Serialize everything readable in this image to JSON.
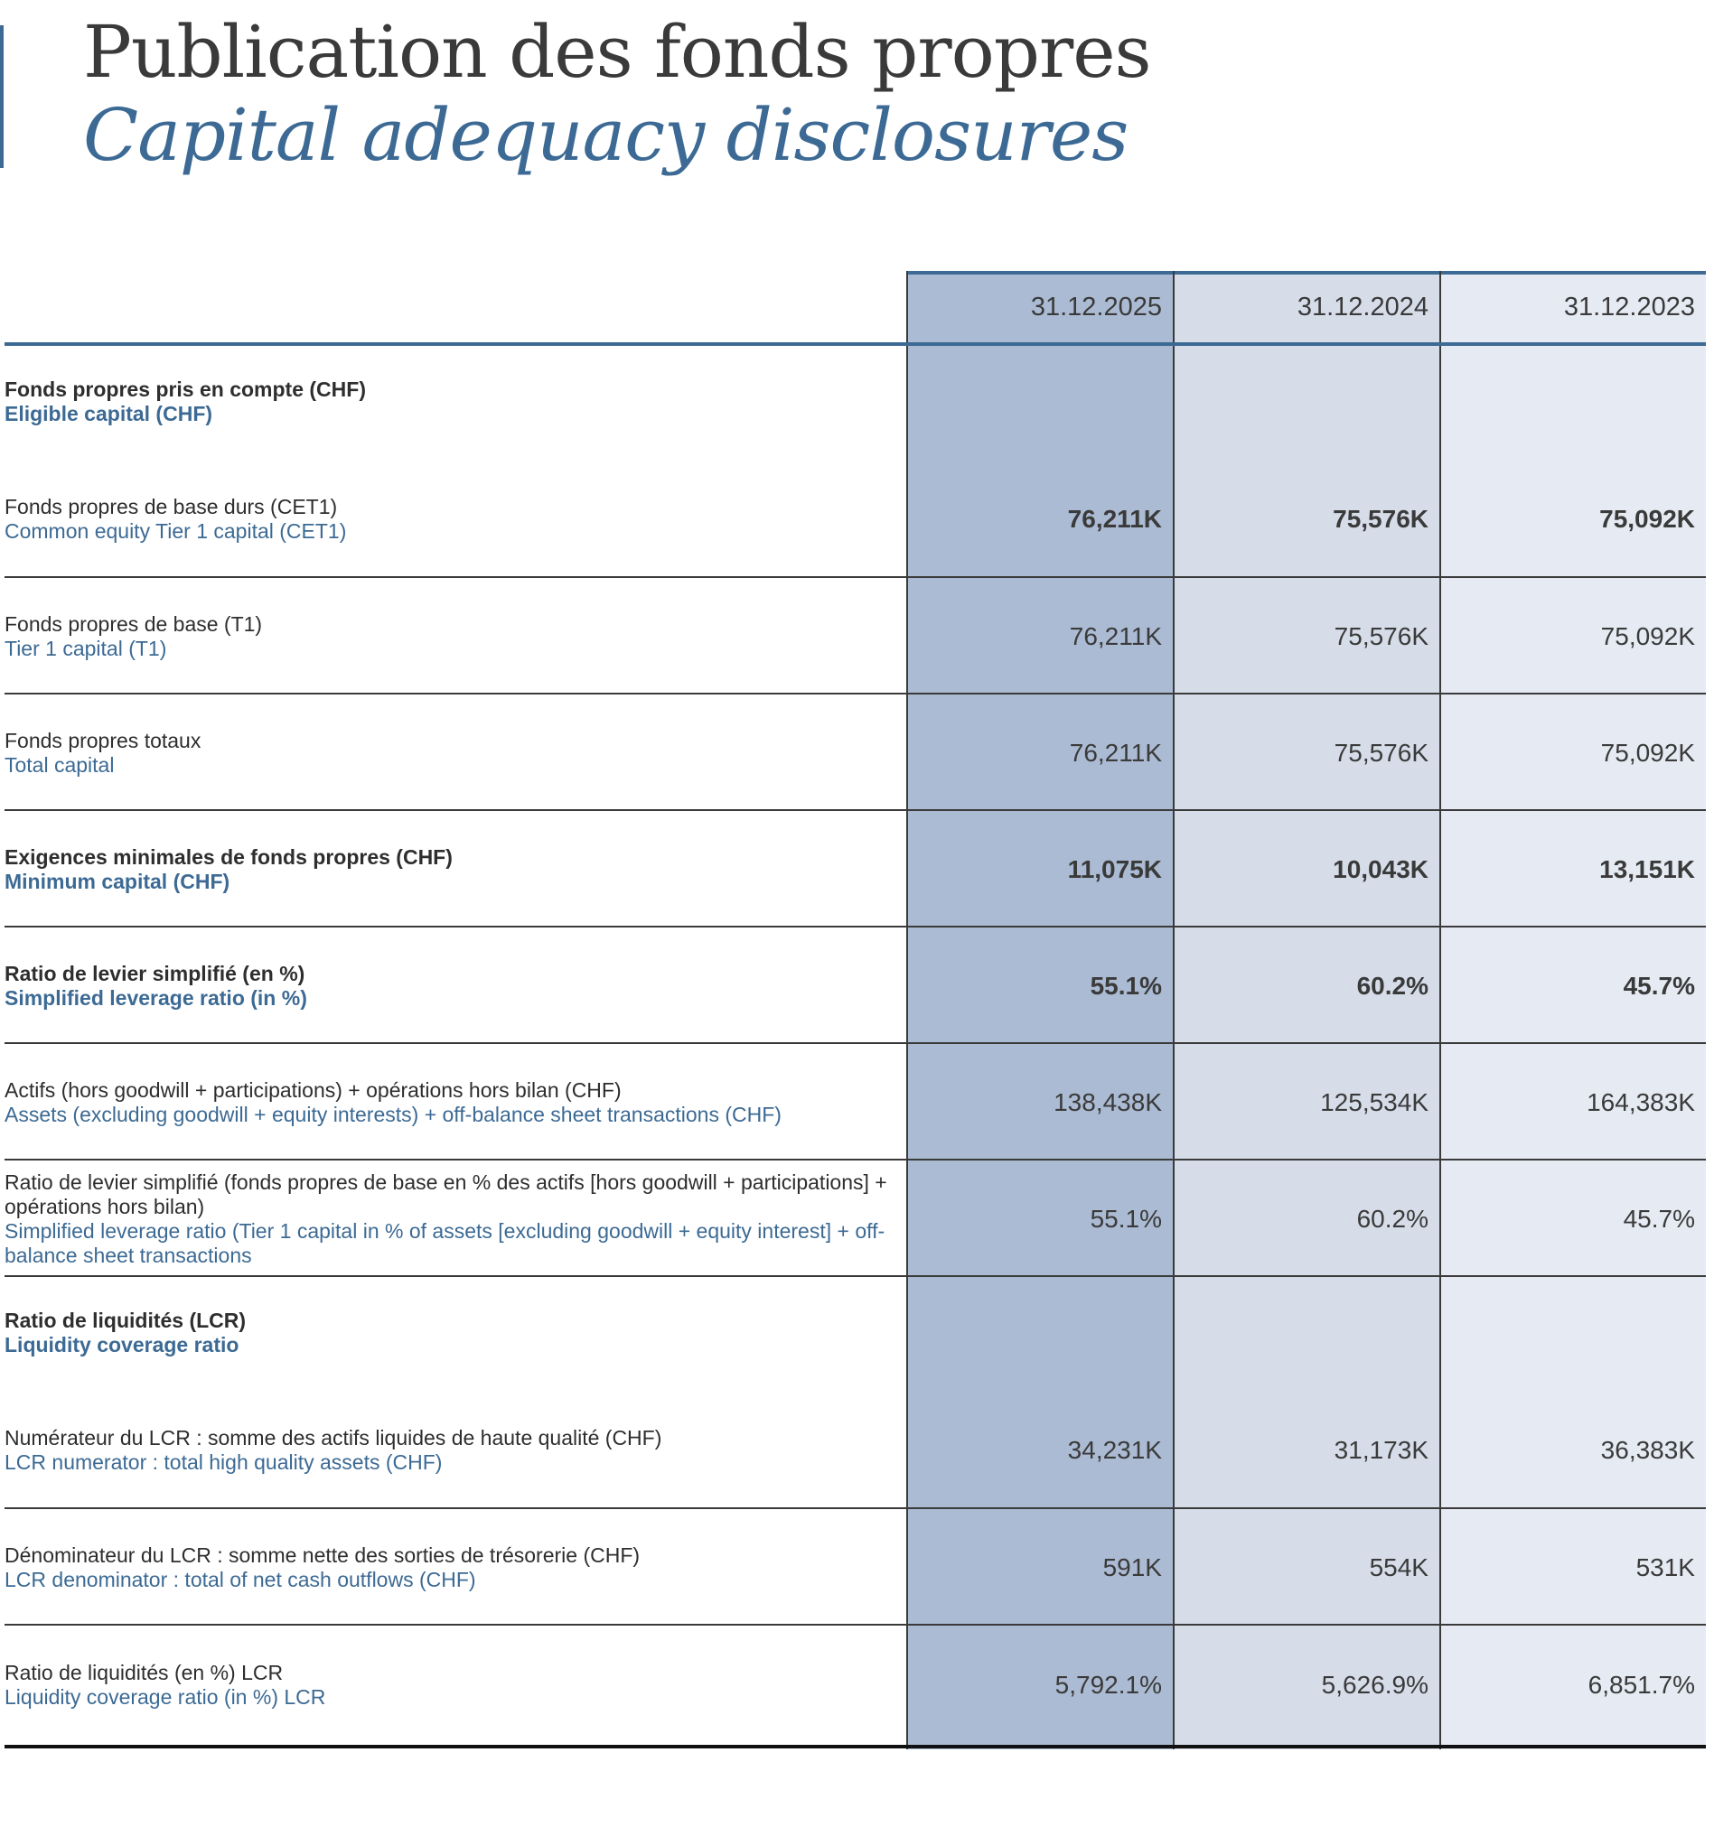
{
  "title": {
    "fr": "Publication des fonds propres",
    "en": "Capital adequacy disclosures"
  },
  "columns": [
    "31.12.2025",
    "31.12.2024",
    "31.12.2023"
  ],
  "rows": [
    {
      "fr": "Fonds propres pris en compte (CHF)",
      "en": "Eligible capital (CHF)",
      "bold": true,
      "values": [
        "",
        "",
        ""
      ]
    },
    {
      "fr": "Fonds propres de base durs (CET1)",
      "en": "Common equity Tier 1 capital (CET1)",
      "bold": false,
      "values": [
        "76,211K",
        "75,576K",
        "75,092K"
      ],
      "values_bold": true
    },
    {
      "fr": "Fonds propres de base (T1)",
      "en": "Tier 1 capital (T1)",
      "bold": false,
      "values": [
        "76,211K",
        "75,576K",
        "75,092K"
      ]
    },
    {
      "fr": "Fonds propres totaux",
      "en": "Total capital",
      "bold": false,
      "values": [
        "76,211K",
        "75,576K",
        "75,092K"
      ]
    },
    {
      "fr": "Exigences minimales de fonds propres (CHF)",
      "en": "Minimum capital (CHF)",
      "bold": true,
      "values": [
        "11,075K",
        "10,043K",
        "13,151K"
      ],
      "values_bold": true
    },
    {
      "fr": "Ratio de levier simplifié (en %)",
      "en": "Simplified leverage ratio (in %)",
      "bold": true,
      "values": [
        "55.1%",
        "60.2%",
        "45.7%"
      ],
      "values_bold": true
    },
    {
      "fr": "Actifs (hors goodwill + participations) + opérations hors bilan (CHF)",
      "en": "Assets (excluding goodwill + equity interests) + off-balance sheet transactions (CHF)",
      "bold": false,
      "values": [
        "138,438K",
        "125,534K",
        "164,383K"
      ]
    },
    {
      "fr": "Ratio de levier simplifié (fonds propres de base en % des actifs [hors goodwill + participations] + opérations hors bilan)",
      "en": "Simplified leverage ratio (Tier 1 capital in % of assets [excluding goodwill + equity interest] + off-balance sheet transactions",
      "bold": false,
      "values": [
        "55.1%",
        "60.2%",
        "45.7%"
      ]
    },
    {
      "fr": "Ratio de liquidités (LCR)",
      "en": "Liquidity coverage ratio",
      "bold": true,
      "values": [
        "",
        "",
        ""
      ]
    },
    {
      "fr": "Numérateur du LCR : somme des actifs liquides de haute qualité (CHF)",
      "en": "LCR numerator : total high quality assets (CHF)",
      "bold": false,
      "values": [
        "34,231K",
        "31,173K",
        "36,383K"
      ]
    },
    {
      "fr": "Dénominateur du LCR : somme nette des sorties de trésorerie (CHF)",
      "en": "LCR denominator : total of net cash outflows (CHF)",
      "bold": false,
      "values": [
        "591K",
        "554K",
        "531K"
      ]
    },
    {
      "fr": "Ratio de liquidités (en %) LCR",
      "en": "Liquidity coverage ratio (in %) LCR",
      "bold": false,
      "values": [
        "5,792.1%",
        "5,626.9%",
        "6,851.7%"
      ]
    }
  ],
  "colors": {
    "accent": "#3c6a94",
    "col_2025": "#abbbd3",
    "col_2024": "#d6dde9",
    "col_2023": "#e6ebf3"
  }
}
